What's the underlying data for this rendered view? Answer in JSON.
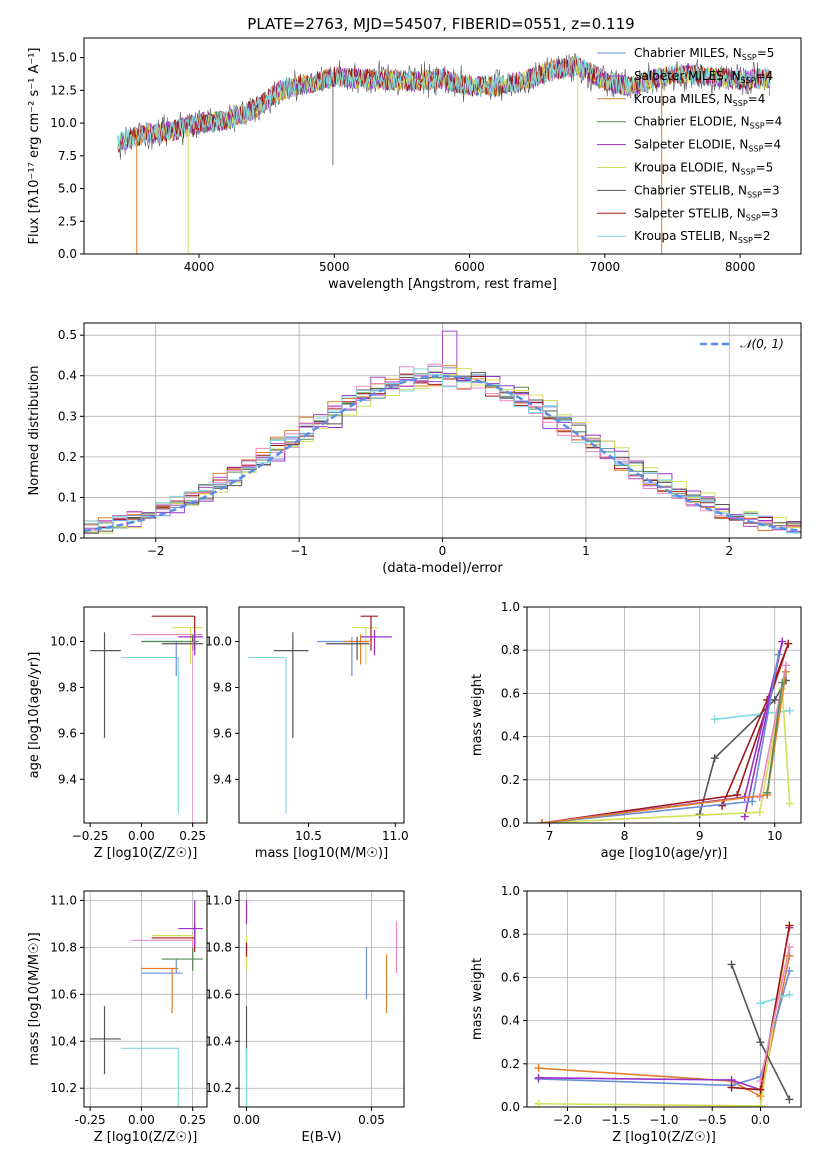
{
  "figure_title": "PLATE=2763, MJD=54507, FIBERID=0551, z=0.119",
  "colors": {
    "Chabrier MILES": "#6b8fd6",
    "Salpeter MILES": "#a64ac9",
    "Kroupa MILES": "#e0802a",
    "Chabrier ELODIE": "#5a8a5a",
    "Salpeter ELODIE": "#9b30c8",
    "Kroupa ELODIE": "#d4e05a",
    "Chabrier STELIB": "#555555",
    "Salpeter STELIB": "#a01818",
    "Kroupa STELIB": "#80d8e0",
    "Kroupa STELIB2": "#e88ac0",
    "normal": "#5b8ee6"
  },
  "chart_data": [
    {
      "id": "spectrum",
      "type": "line",
      "title": "",
      "xlabel": "wavelength [Angstrom, rest frame]",
      "ylabel": "Flux [fλ10⁻¹⁷ erg cm⁻² s⁻¹ A⁻¹]",
      "xlim": [
        3150,
        8450
      ],
      "ylim": [
        0,
        16.5
      ],
      "xticks": [
        4000,
        5000,
        6000,
        7000,
        8000
      ],
      "yticks": [
        0.0,
        2.5,
        5.0,
        7.5,
        10.0,
        12.5,
        15.0
      ],
      "grid": false,
      "legend_position": "right",
      "legend": [
        "Chabrier MILES, N_SSP=5",
        "Salpeter MILES, N_SSP=4",
        "Kroupa MILES, N_SSP=4",
        "Chabrier ELODIE, N_SSP=4",
        "Salpeter ELODIE, N_SSP=4",
        "Kroupa ELODIE, N_SSP=5",
        "Chabrier STELIB, N_SSP=3",
        "Salpeter STELIB, N_SSP=3",
        "Kroupa STELIB, N_SSP=2"
      ],
      "data_envelope": {
        "x": [
          3400,
          3600,
          3800,
          4000,
          4200,
          4400,
          4600,
          4800,
          5000,
          5200,
          5400,
          5600,
          5800,
          6000,
          6200,
          6400,
          6600,
          6800,
          7000,
          7200,
          7400,
          7600,
          7800,
          8000,
          8200
        ],
        "y": [
          8.5,
          9.2,
          9.4,
          10.0,
          10.2,
          11.0,
          12.5,
          13.0,
          13.5,
          13.4,
          13.3,
          13.2,
          13.4,
          12.8,
          12.8,
          13.2,
          14.0,
          14.4,
          13.2,
          12.8,
          13.5,
          13.8,
          13.5,
          13.3,
          13.4
        ]
      }
    },
    {
      "id": "residuals",
      "type": "histogram",
      "xlabel": "(data-model)/error",
      "ylabel": "Normed distribution",
      "xlim": [
        -2.5,
        2.5
      ],
      "ylim": [
        0,
        0.53
      ],
      "xticks": [
        -2,
        -1,
        0,
        1,
        2
      ],
      "yticks": [
        0.0,
        0.1,
        0.2,
        0.3,
        0.4,
        0.5
      ],
      "grid": true,
      "legend": [
        "N(0,1)"
      ],
      "legend_position": "top-right"
    },
    {
      "id": "age_vs_Z",
      "type": "errorbar",
      "xlabel": "Z [log10(Z/Z☉)]",
      "ylabel": "age [log10(age/yr)]",
      "xlim": [
        -0.28,
        0.32
      ],
      "ylim": [
        9.21,
        10.15
      ],
      "xticks": [
        -0.25,
        0.0,
        0.25
      ],
      "yticks": [
        9.4,
        9.6,
        9.8,
        10.0
      ],
      "xtick_labels": [
        "−0.25",
        "0.00",
        "0.25"
      ],
      "ytick_labels": [
        "9.4",
        "9.6",
        "9.8",
        "10.0"
      ]
    },
    {
      "id": "age_vs_mass",
      "type": "errorbar",
      "xlabel": "mass [log10(M/M☉)]",
      "xlim": [
        10.1,
        11.05
      ],
      "ylim": [
        9.21,
        10.15
      ],
      "xticks": [
        10.5,
        11.0
      ],
      "yticks": [
        9.4,
        9.6,
        9.8,
        10.0
      ],
      "xtick_labels": [
        "10.5",
        "11.0"
      ],
      "ytick_labels": [
        "9.4",
        "9.6",
        "9.8",
        "10.0"
      ]
    },
    {
      "id": "weight_vs_age",
      "type": "line",
      "xlabel": "age [log10(age/yr)]",
      "ylabel": "mass weight",
      "xlim": [
        6.7,
        10.35
      ],
      "ylim": [
        0,
        1.0
      ],
      "xticks": [
        7,
        8,
        9,
        10
      ],
      "yticks": [
        0.0,
        0.2,
        0.4,
        0.6,
        0.8,
        1.0
      ],
      "grid": true
    },
    {
      "id": "mass_vs_Z",
      "type": "errorbar",
      "xlabel": "Z [log10(Z/Z☉)]",
      "ylabel": "mass [log10(M/M☉)]",
      "xlim": [
        -0.28,
        0.32
      ],
      "ylim": [
        10.12,
        11.04
      ],
      "xticks": [
        -0.25,
        0.0,
        0.25
      ],
      "yticks": [
        10.2,
        10.4,
        10.6,
        10.8,
        11.0
      ],
      "grid": true
    },
    {
      "id": "mass_vs_ebv",
      "type": "errorbar",
      "xlabel": "E(B-V)",
      "xlim": [
        -0.003,
        0.063
      ],
      "ylim": [
        10.12,
        11.04
      ],
      "xticks": [
        0.0,
        0.05
      ],
      "yticks": [
        10.2,
        10.4,
        10.6,
        10.8,
        11.0
      ],
      "grid": true
    },
    {
      "id": "weight_vs_Z",
      "type": "line",
      "xlabel": "Z [log10(Z/Z☉)]",
      "ylabel": "mass weight",
      "xlim": [
        -2.42,
        0.42
      ],
      "ylim": [
        0,
        1.0
      ],
      "xticks": [
        -2.0,
        -1.5,
        -1.0,
        -0.5,
        0.0
      ],
      "yticks": [
        0.0,
        0.2,
        0.4,
        0.6,
        0.8,
        1.0
      ],
      "grid": true
    }
  ]
}
